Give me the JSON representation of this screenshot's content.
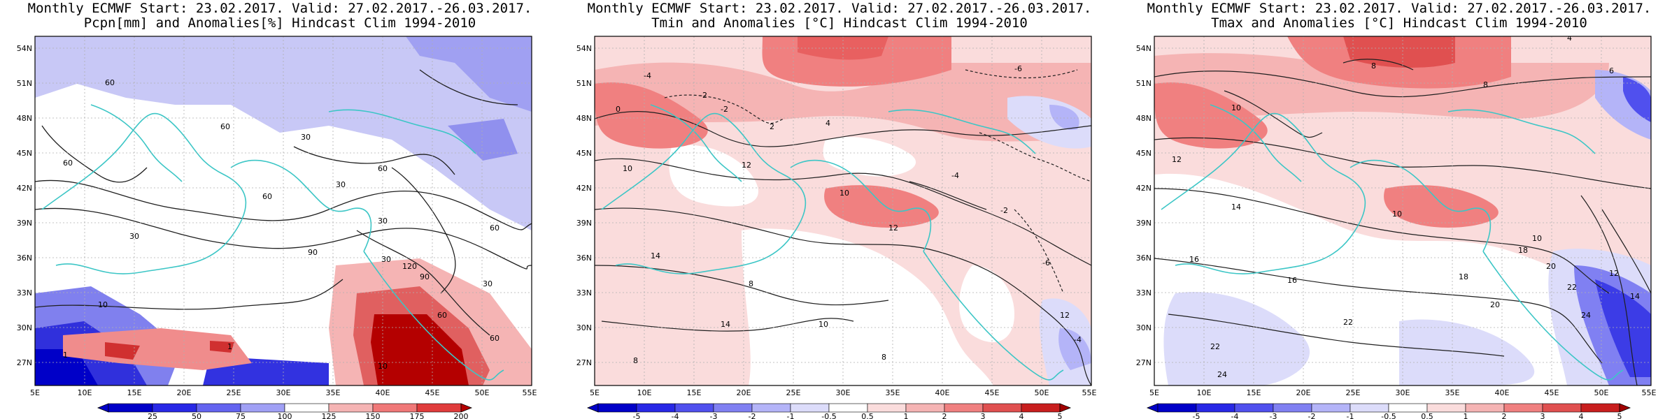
{
  "colors": {
    "map_contour": "#1f1f1f",
    "coastline": "#3cc6c6",
    "neutral": "#ffffff"
  },
  "panels": [
    {
      "title_line1": "Monthly ECMWF Start: 23.02.2017. Valid: 27.02.2017.-26.03.2017.",
      "title_line2": "Pcpn[mm] and Anomalies[%] Hindcast Clim 1994-2010",
      "lat_labels": [
        "54N",
        "51N",
        "48N",
        "45N",
        "42N",
        "39N",
        "36N",
        "33N",
        "30N",
        "27N"
      ],
      "lon_labels": [
        "5E",
        "10E",
        "15E",
        "20E",
        "25E",
        "30E",
        "35E",
        "40E",
        "45E",
        "50E",
        "55E"
      ],
      "colorbar_labels": [
        "25",
        "50",
        "75",
        "100",
        "125",
        "150",
        "175",
        "200"
      ],
      "colorbar_colors": [
        "#0000c8",
        "#2828e6",
        "#6464f0",
        "#a0a0f5",
        "#ffffff",
        "#f5b4b4",
        "#f07878",
        "#e03c3c",
        "#b40000"
      ],
      "contour_labels": [
        "60",
        "60",
        "30",
        "30",
        "60",
        "60",
        "30",
        "60",
        "90",
        "10",
        "1",
        "1",
        "120",
        "90",
        "60",
        "30",
        "10",
        "30",
        "60",
        "60",
        "30"
      ]
    },
    {
      "title_line1": "Monthly ECMWF Start: 23.02.2017. Valid: 27.02.2017.-26.03.2017.",
      "title_line2": "Tmin and Anomalies [°C] Hindcast Clim 1994-2010",
      "lat_labels": [
        "54N",
        "51N",
        "48N",
        "45N",
        "42N",
        "39N",
        "36N",
        "33N",
        "30N",
        "27N"
      ],
      "lon_labels": [
        "5E",
        "10E",
        "15E",
        "20E",
        "25E",
        "30E",
        "35E",
        "40E",
        "45E",
        "50E",
        "55E"
      ],
      "colorbar_labels": [
        "-5",
        "-4",
        "-3",
        "-2",
        "-1",
        "-0.5",
        "0.5",
        "1",
        "2",
        "3",
        "4",
        "5"
      ],
      "colorbar_colors": [
        "#0000c8",
        "#2828e6",
        "#5050ee",
        "#8080f2",
        "#b4b4f8",
        "#dcdcfa",
        "#ffffff",
        "#fadcdc",
        "#f5b4b4",
        "#f08080",
        "#e05050",
        "#c81e1e",
        "#a00000"
      ],
      "contour_labels": [
        "-6",
        "-4",
        "-2",
        "0",
        "2",
        "-2",
        "4",
        "10",
        "12",
        "14",
        "8",
        "10",
        "12",
        "14",
        "-4",
        "-2",
        "-6",
        "8",
        "12",
        "10",
        "-4",
        "8"
      ]
    },
    {
      "title_line1": "Monthly ECMWF Start: 23.02.2017. Valid: 27.02.2017.-26.03.2017.",
      "title_line2": "Tmax and Anomalies [°C] Hindcast Clim 1994-2010",
      "lat_labels": [
        "54N",
        "51N",
        "48N",
        "45N",
        "42N",
        "39N",
        "36N",
        "33N",
        "30N",
        "27N"
      ],
      "lon_labels": [
        "5E",
        "10E",
        "15E",
        "20E",
        "25E",
        "30E",
        "35E",
        "40E",
        "45E",
        "50E",
        "55E"
      ],
      "colorbar_labels": [
        "-5",
        "-4",
        "-3",
        "-2",
        "-1",
        "-0.5",
        "0.5",
        "1",
        "2",
        "3",
        "4",
        "5"
      ],
      "colorbar_colors": [
        "#0000c8",
        "#2828e6",
        "#5050ee",
        "#8080f2",
        "#b4b4f8",
        "#dcdcfa",
        "#ffffff",
        "#fadcdc",
        "#f5b4b4",
        "#f08080",
        "#e05050",
        "#c81e1e",
        "#a00000"
      ],
      "contour_labels": [
        "4",
        "6",
        "8",
        "10",
        "12",
        "8",
        "10",
        "14",
        "16",
        "18",
        "16",
        "22",
        "20",
        "22",
        "24",
        "18",
        "20",
        "14",
        "12",
        "10",
        "22",
        "24"
      ]
    }
  ]
}
